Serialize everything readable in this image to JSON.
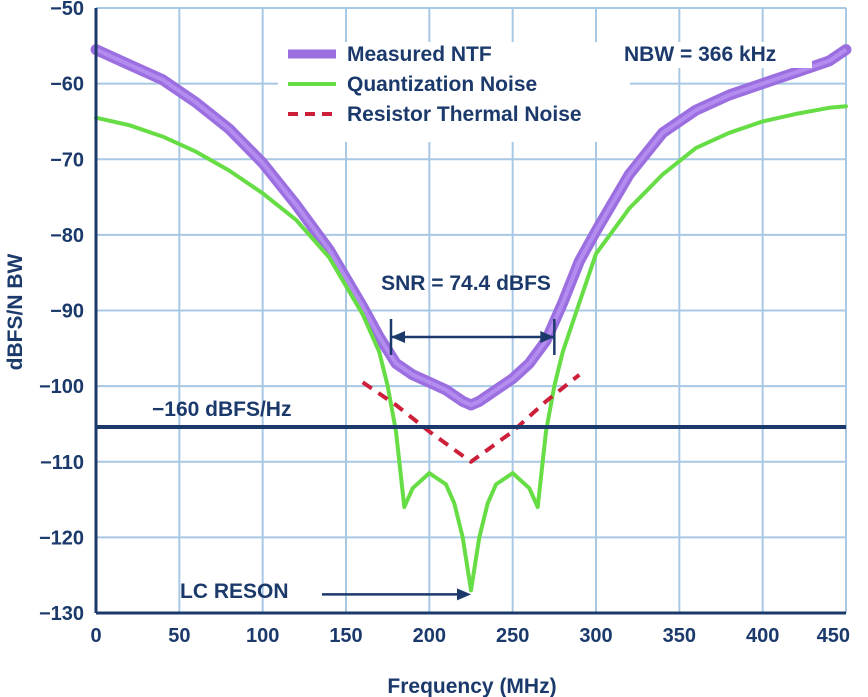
{
  "chart_data": {
    "type": "line",
    "xlabel": "Frequency (MHz)",
    "ylabel": "dBFS/N BW",
    "xlim": [
      0,
      450
    ],
    "ylim": [
      -130,
      -50
    ],
    "x_ticks": [
      "0",
      "50",
      "100",
      "150",
      "200",
      "250",
      "300",
      "350",
      "400",
      "450"
    ],
    "y_ticks": [
      "−50",
      "−60",
      "−70",
      "−80",
      "−90",
      "−100",
      "−110",
      "−120",
      "−130"
    ],
    "grid": true,
    "legend_position": "top-center",
    "series": [
      {
        "name": "Measured NTF",
        "color": "#9b6fe0",
        "style": "thick-band",
        "x": [
          0,
          20,
          40,
          60,
          80,
          100,
          120,
          140,
          160,
          170,
          180,
          190,
          200,
          210,
          220,
          225,
          230,
          240,
          250,
          260,
          270,
          280,
          290,
          300,
          320,
          340,
          360,
          380,
          400,
          420,
          440,
          450
        ],
        "y": [
          -55.5,
          -57.5,
          -59.5,
          -62.5,
          -66,
          -70.5,
          -76,
          -82,
          -89.5,
          -93.5,
          -97,
          -98.5,
          -99.5,
          -100.5,
          -102,
          -102.5,
          -102,
          -100.5,
          -99,
          -97,
          -94,
          -89,
          -83.5,
          -79.5,
          -72,
          -66.5,
          -63.5,
          -61.5,
          -60,
          -58.5,
          -57,
          -55.5
        ]
      },
      {
        "name": "Quantization Noise",
        "color": "#66dd44",
        "style": "solid",
        "x": [
          0,
          20,
          40,
          60,
          80,
          100,
          120,
          140,
          160,
          170,
          175,
          180,
          185,
          190,
          200,
          210,
          215,
          220,
          225,
          230,
          235,
          240,
          250,
          260,
          265,
          270,
          275,
          280,
          290,
          300,
          320,
          340,
          360,
          380,
          400,
          420,
          440,
          450
        ],
        "y": [
          -64.5,
          -65.5,
          -67,
          -69,
          -71.5,
          -74.5,
          -78,
          -83,
          -90.5,
          -95.5,
          -100,
          -106,
          -116,
          -113.5,
          -111.5,
          -113,
          -115.5,
          -120,
          -127,
          -120,
          -115.5,
          -113,
          -111.5,
          -113.5,
          -116,
          -106,
          -100,
          -95.5,
          -89,
          -82.5,
          -76.5,
          -72,
          -68.5,
          -66.5,
          -65,
          -64,
          -63.2,
          -63
        ]
      },
      {
        "name": "Resistor Thermal Noise",
        "color": "#cc1f3a",
        "style": "dashed",
        "x": [
          160,
          180,
          200,
          225,
          250,
          270,
          290
        ],
        "y": [
          -99.5,
          -102.5,
          -106,
          -110,
          -106,
          -102,
          -98.5
        ]
      }
    ],
    "reference_lines": [
      {
        "label": "−160 dBFS/Hz",
        "y": -105.4,
        "color": "#1b3a6b"
      }
    ],
    "annotations": {
      "nbw": "NBW = 366 kHz",
      "snr": "SNR = 74.4 dBFS",
      "snr_span_x": [
        177,
        275
      ],
      "snr_span_y": -93.5,
      "lc_reson": "LC RESON",
      "lc_reson_point": [
        225,
        -127
      ]
    }
  },
  "colors": {
    "grid": "#a8c8e4",
    "axis_text": "#1b3a6b",
    "frame": "#1b3a6b"
  }
}
